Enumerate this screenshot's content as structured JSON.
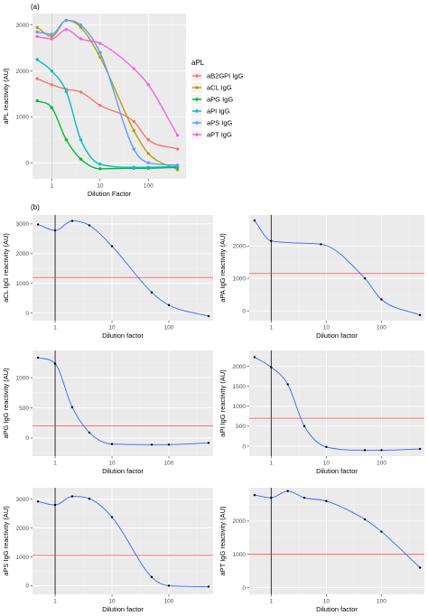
{
  "panel_labels": {
    "a": "(a)",
    "b": "(b)"
  },
  "chart_data": [
    {
      "type": "scatter",
      "xscale": "log",
      "xlim": [
        0.4,
        600
      ],
      "ylim": [
        -350,
        3250
      ],
      "xticks": [
        1,
        10,
        100
      ],
      "xtick_labels": [
        "1",
        "10",
        "100"
      ],
      "yticks": [
        0,
        1000,
        2000,
        3000
      ],
      "ytick_labels": [
        "0",
        "1000",
        "2000",
        "3000"
      ],
      "vline": 1,
      "xlabel": "Dilution Factor",
      "ylabel": "aPL reactivity (AU)",
      "legend_title": "aPL",
      "legend_position": "right",
      "smooth": true,
      "series": [
        {
          "name": "aB2GPI IgG",
          "color": "#F8766D",
          "x": [
            0.5,
            1,
            2,
            4,
            10,
            50,
            100,
            400
          ],
          "y": [
            1830,
            1700,
            1600,
            1540,
            1250,
            900,
            500,
            300
          ]
        },
        {
          "name": "aCL IgG",
          "color": "#B79F00",
          "x": [
            0.5,
            1,
            2,
            4,
            10,
            50,
            100,
            400
          ],
          "y": [
            2950,
            2750,
            3100,
            2950,
            2300,
            700,
            200,
            -150
          ]
        },
        {
          "name": "aPG IgG",
          "color": "#00BA38",
          "x": [
            0.5,
            1,
            2,
            4,
            10,
            50,
            100,
            400
          ],
          "y": [
            1350,
            1200,
            500,
            80,
            -130,
            -120,
            -120,
            -100
          ]
        },
        {
          "name": "aPI IgG",
          "color": "#00BFC4",
          "x": [
            0.5,
            1,
            2,
            4,
            10,
            50,
            100,
            400
          ],
          "y": [
            2250,
            2000,
            1550,
            500,
            -30,
            -100,
            -100,
            -80
          ]
        },
        {
          "name": "aPS IgG",
          "color": "#619CFF",
          "x": [
            0.5,
            1,
            2,
            4,
            10,
            50,
            100,
            400
          ],
          "y": [
            2850,
            2800,
            3100,
            3000,
            2400,
            300,
            0,
            -50
          ]
        },
        {
          "name": "aPT IgG",
          "color": "#F564E3",
          "x": [
            0.5,
            1,
            2,
            4,
            10,
            50,
            100,
            400
          ],
          "y": [
            2750,
            2700,
            2900,
            2700,
            2600,
            2050,
            1700,
            600
          ]
        }
      ]
    },
    {
      "type": "scatter",
      "xscale": "log",
      "xlim": [
        0.4,
        600
      ],
      "ylim": [
        -250,
        3300
      ],
      "xticks": [
        1,
        10,
        100
      ],
      "xtick_labels": [
        "1",
        "10",
        "100"
      ],
      "yticks": [
        0,
        1000,
        2000,
        3000
      ],
      "ytick_labels": [
        "0",
        "1000",
        "2000",
        "3000"
      ],
      "vline": 1,
      "hline": 1200,
      "xlabel": "Dilution factor",
      "ylabel": "aCL IgG reactivity (AU)",
      "line_color": "#3366FF",
      "hline_color": "#FF3333",
      "x": [
        0.5,
        1,
        2,
        4,
        10,
        50,
        100,
        500
      ],
      "y": [
        2980,
        2780,
        3100,
        2950,
        2250,
        700,
        270,
        -100
      ]
    },
    {
      "type": "scatter",
      "xscale": "log",
      "xlim": [
        0.4,
        600
      ],
      "ylim": [
        -300,
        2950
      ],
      "xticks": [
        1,
        10,
        100
      ],
      "xtick_labels": [
        "1",
        "10",
        "100"
      ],
      "yticks": [
        0,
        1000,
        2000
      ],
      "ytick_labels": [
        "0",
        "1000",
        "2000"
      ],
      "vline": 1,
      "hline": 1150,
      "xlabel": "Dilution factor",
      "ylabel": "aPA IgG reactivity (AU)",
      "line_color": "#3366FF",
      "hline_color": "#FF3333",
      "x": [
        0.5,
        1,
        8,
        50,
        100,
        500
      ],
      "y": [
        2780,
        2150,
        2050,
        1000,
        350,
        -130
      ]
    },
    {
      "type": "scatter",
      "xscale": "log",
      "xlim": [
        0.4,
        600
      ],
      "ylim": [
        -300,
        1450
      ],
      "xticks": [
        1,
        10,
        100
      ],
      "xtick_labels": [
        "1",
        "10",
        "100"
      ],
      "yticks": [
        0,
        500,
        1000
      ],
      "ytick_labels": [
        "0",
        "500",
        "1000"
      ],
      "vline": 1,
      "hline": 200,
      "xlabel": "Dilution factor",
      "ylabel": "aPG IgG reactivity (AU)",
      "line_color": "#3366FF",
      "hline_color": "#FF3333",
      "x": [
        0.5,
        1,
        2,
        4,
        10,
        50,
        100,
        500
      ],
      "y": [
        1330,
        1230,
        510,
        90,
        -100,
        -110,
        -110,
        -80
      ]
    },
    {
      "type": "scatter",
      "xscale": "log",
      "xlim": [
        0.4,
        600
      ],
      "ylim": [
        -250,
        2400
      ],
      "xticks": [
        1,
        10,
        100
      ],
      "xtick_labels": [
        "1",
        "10",
        "100"
      ],
      "yticks": [
        0,
        500,
        1000,
        1500,
        2000
      ],
      "ytick_labels": [
        "0",
        "500",
        "1000",
        "1500",
        "2000"
      ],
      "vline": 1,
      "hline": 700,
      "xlabel": "Dilution factor",
      "ylabel": "aPI IgG reactivity (AU)",
      "line_color": "#3366FF",
      "hline_color": "#FF3333",
      "x": [
        0.5,
        1,
        2,
        4,
        10,
        50,
        100,
        500
      ],
      "y": [
        2230,
        1980,
        1550,
        500,
        -20,
        -100,
        -100,
        -70
      ]
    },
    {
      "type": "scatter",
      "xscale": "log",
      "xlim": [
        0.4,
        600
      ],
      "ylim": [
        -300,
        3400
      ],
      "xticks": [
        1,
        10,
        100
      ],
      "xtick_labels": [
        "1",
        "10",
        "100"
      ],
      "yticks": [
        0,
        1000,
        2000,
        3000
      ],
      "ytick_labels": [
        "0",
        "1000",
        "2000",
        "3000"
      ],
      "vline": 1,
      "hline": 1050,
      "xlabel": "Dilution factor",
      "ylabel": "aPS IgG reactivity (AU)",
      "line_color": "#3366FF",
      "hline_color": "#FF3333",
      "x": [
        0.5,
        1,
        2,
        4,
        10,
        50,
        100,
        500
      ],
      "y": [
        2920,
        2800,
        3100,
        3020,
        2380,
        300,
        0,
        -30
      ]
    },
    {
      "type": "scatter",
      "xscale": "log",
      "xlim": [
        0.4,
        600
      ],
      "ylim": [
        -200,
        3000
      ],
      "xticks": [
        1,
        10,
        100
      ],
      "xtick_labels": [
        "1",
        "10",
        "100"
      ],
      "yticks": [
        0,
        1000,
        2000
      ],
      "ytick_labels": [
        "0",
        "1000",
        "2000"
      ],
      "vline": 1,
      "hline": 1000,
      "xlabel": "Dilution factor",
      "ylabel": "aPT IgG reactivity (AU)",
      "line_color": "#3366FF",
      "hline_color": "#FF3333",
      "x": [
        0.5,
        1,
        2,
        4,
        10,
        50,
        100,
        500
      ],
      "y": [
        2780,
        2700,
        2900,
        2700,
        2600,
        2050,
        1680,
        600
      ]
    }
  ]
}
